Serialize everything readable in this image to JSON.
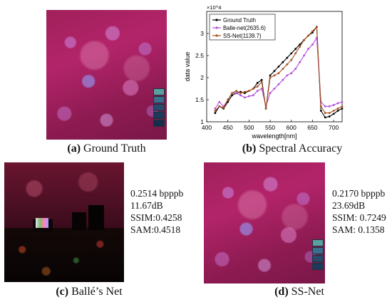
{
  "panels": {
    "a": {
      "letter": "(a)",
      "caption": " Ground Truth"
    },
    "b": {
      "letter": "(b)",
      "caption": " Spectral Accuracy"
    },
    "c": {
      "letter": "(c)",
      "caption": " Ballé’s Net",
      "metrics": [
        "0.2514 bpppb",
        "11.67dB",
        "SSIM:0.4258",
        "SAM:0.4518"
      ]
    },
    "d": {
      "letter": "(d)",
      "caption": " SS-Net",
      "metrics": [
        "0.2170 bpppb",
        "23.69dB",
        "SSIM: 0.7249",
        "SAM: 0.1358"
      ]
    }
  },
  "chart_data": {
    "type": "line",
    "xlabel": "wavelength[nm]",
    "ylabel": "data value",
    "y_exponent": "×10^4",
    "xlim": [
      400,
      720
    ],
    "ylim": [
      10000,
      35000
    ],
    "xticks": [
      400,
      450,
      500,
      550,
      600,
      650,
      700
    ],
    "yticks": [
      10000,
      15000,
      20000,
      25000,
      30000
    ],
    "ytick_labels": [
      "1",
      "1.5",
      "2",
      "2.5",
      "3"
    ],
    "legend_position": "top-left",
    "x": [
      420,
      430,
      440,
      450,
      460,
      470,
      480,
      490,
      500,
      510,
      520,
      530,
      540,
      550,
      560,
      570,
      580,
      590,
      600,
      610,
      620,
      630,
      640,
      650,
      660,
      670,
      680,
      690,
      700,
      710,
      720
    ],
    "series": [
      {
        "name": "Ground Truth",
        "color": "#000000",
        "values": [
          12000,
          13500,
          13000,
          14500,
          16000,
          16500,
          16800,
          16500,
          17000,
          17500,
          18800,
          19500,
          13000,
          20500,
          21500,
          22500,
          23500,
          24500,
          25500,
          26500,
          27500,
          28500,
          29500,
          30200,
          31500,
          12500,
          11000,
          11200,
          11800,
          12500,
          13000
        ]
      },
      {
        "name": "Balle-net(2635.6)",
        "color": "#b44fd8",
        "values": [
          13000,
          14500,
          13500,
          15000,
          16500,
          16500,
          16000,
          15500,
          15800,
          16000,
          17000,
          17500,
          13500,
          16500,
          17500,
          18500,
          19500,
          20500,
          21000,
          22000,
          23500,
          25000,
          26500,
          27500,
          29000,
          14500,
          13500,
          13500,
          13800,
          14200,
          14500
        ]
      },
      {
        "name": "SS-Net(1139.7)",
        "color": "#a8501e",
        "values": [
          12500,
          13500,
          13200,
          15000,
          16500,
          17000,
          16500,
          16800,
          17000,
          17500,
          18000,
          19000,
          13000,
          20000,
          20500,
          21000,
          22000,
          23000,
          24000,
          25500,
          27000,
          28500,
          29500,
          30500,
          31500,
          13500,
          12000,
          12000,
          12500,
          13000,
          13500
        ]
      }
    ]
  },
  "swatch_colors": [
    "#5aa0a0",
    "#3a6e8a",
    "#2a4a6a",
    "#1e3a5a",
    "#162e4a"
  ]
}
